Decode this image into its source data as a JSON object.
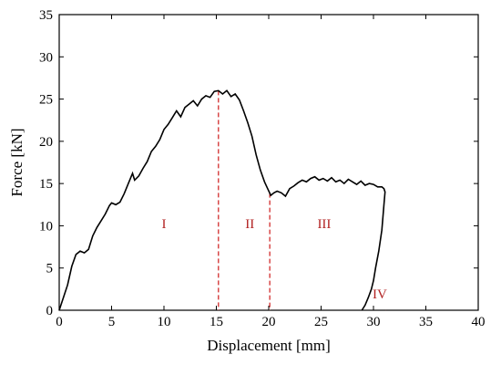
{
  "chart_data": {
    "type": "line",
    "title": "",
    "xlabel": "Displacement [mm]",
    "ylabel": "Force [kN]",
    "xlim": [
      0,
      40
    ],
    "ylim": [
      0,
      35
    ],
    "xticks": [
      0,
      5,
      10,
      15,
      20,
      25,
      30,
      35,
      40
    ],
    "yticks": [
      0,
      5,
      10,
      15,
      20,
      25,
      30,
      35
    ],
    "grid": false,
    "legend": "none",
    "colors": {
      "curve": "#000000",
      "divider": "#d22b2b",
      "region_label": "#b22222"
    },
    "series": [
      {
        "x": [
          0,
          0.4,
          0.8,
          1.2,
          1.6,
          2.0,
          2.4,
          2.8,
          3.0,
          3.2,
          3.6,
          4.0,
          4.4,
          4.8,
          5.0,
          5.4,
          5.8,
          6.2,
          6.6,
          7.0,
          7.2,
          7.6,
          8.0,
          8.4,
          8.8,
          9.2,
          9.6,
          10.0,
          10.4,
          10.8,
          11.2,
          11.6,
          12.0,
          12.4,
          12.8,
          13.2,
          13.6,
          14.0,
          14.4,
          14.8,
          15.2,
          15.6,
          16.0,
          16.4,
          16.8,
          17.2,
          17.6,
          18.0,
          18.4,
          18.8,
          19.2,
          19.6,
          19.9,
          20.2,
          20.5,
          20.8,
          21.2,
          21.6,
          22.0,
          22.4,
          22.8,
          23.2,
          23.6,
          24.0,
          24.4,
          24.8,
          25.2,
          25.6,
          26.0,
          26.4,
          26.8,
          27.2,
          27.6,
          28.0,
          28.4,
          28.8,
          29.2,
          29.6,
          30.0,
          30.4,
          30.8,
          31.0,
          31.1,
          31.0,
          30.8,
          30.5,
          30.2,
          30.0,
          29.8,
          29.5,
          29.2,
          28.9
        ],
        "y": [
          0,
          1.5,
          3.0,
          5.2,
          6.6,
          7.0,
          6.8,
          7.2,
          8.0,
          8.8,
          9.8,
          10.6,
          11.4,
          12.4,
          12.7,
          12.5,
          12.8,
          13.8,
          15.0,
          16.2,
          15.4,
          15.9,
          16.8,
          17.6,
          18.8,
          19.4,
          20.2,
          21.4,
          22.0,
          22.8,
          23.6,
          22.9,
          24.0,
          24.4,
          24.8,
          24.2,
          25.0,
          25.4,
          25.2,
          25.9,
          26.0,
          25.6,
          26.0,
          25.3,
          25.6,
          24.9,
          23.6,
          22.2,
          20.6,
          18.4,
          16.6,
          15.2,
          14.4,
          13.6,
          13.9,
          14.1,
          13.9,
          13.5,
          14.4,
          14.7,
          15.1,
          15.4,
          15.2,
          15.6,
          15.8,
          15.4,
          15.6,
          15.3,
          15.7,
          15.2,
          15.4,
          15.0,
          15.5,
          15.2,
          14.9,
          15.3,
          14.8,
          15.0,
          14.9,
          14.6,
          14.6,
          14.4,
          14.0,
          12.5,
          9.5,
          7.0,
          5.0,
          3.5,
          2.5,
          1.5,
          0.6,
          0
        ]
      }
    ],
    "dividers_x": [
      15.2,
      20.1,
      31.2
    ],
    "annotations": [
      {
        "text": "I",
        "x": 10,
        "y": 9.7
      },
      {
        "text": "II",
        "x": 18.2,
        "y": 9.7
      },
      {
        "text": "III",
        "x": 25.3,
        "y": 9.7
      },
      {
        "text": "IV",
        "x": 30.6,
        "y": 1.4
      }
    ]
  }
}
